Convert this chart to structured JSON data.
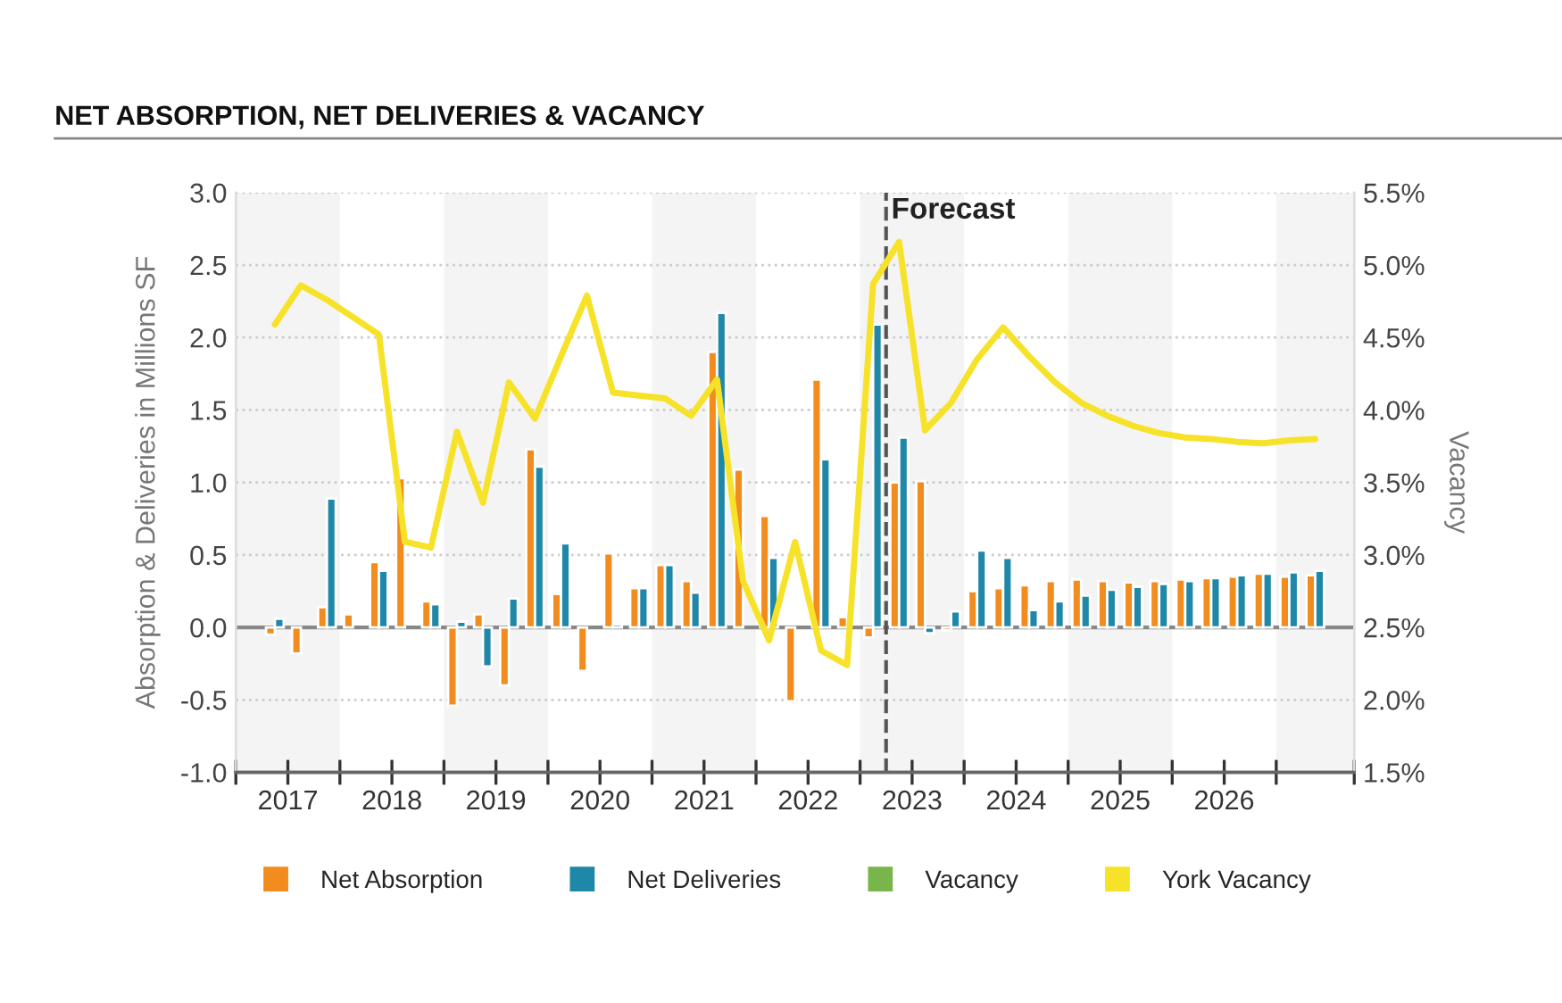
{
  "chart_data": {
    "type": "bar",
    "title": "NET ABSORPTION, NET DELIVERIES & VACANCY",
    "ylabel": "Absorption & Deliveries in Millions SF",
    "y2label": "Vacancy",
    "x": [
      2017.375,
      2017.625,
      2017.875,
      2018.125,
      2018.375,
      2018.625,
      2018.875,
      2019.125,
      2019.375,
      2019.625,
      2019.875,
      2020.125,
      2020.375,
      2020.625,
      2020.875,
      2021.125,
      2021.375,
      2021.625,
      2021.875,
      2022.125,
      2022.375,
      2022.625,
      2022.875,
      2023.125,
      2023.375,
      2023.625,
      2023.875,
      2024.125,
      2024.375,
      2024.625,
      2024.875,
      2025.125,
      2025.375,
      2025.625,
      2025.875,
      2026.125,
      2026.375,
      2026.625,
      2026.875,
      2027.125,
      2027.375
    ],
    "series": [
      {
        "name": "Net Absorption",
        "color": "#f28c1e",
        "values": [
          -0.05,
          -0.18,
          0.14,
          0.09,
          0.45,
          1.03,
          0.18,
          -0.54,
          0.09,
          -0.4,
          1.23,
          0.23,
          -0.3,
          0.51,
          0.27,
          0.43,
          0.32,
          1.9,
          1.09,
          0.77,
          -0.51,
          1.71,
          0.07,
          -0.07,
          1.0,
          1.01,
          -0.02,
          0.25,
          0.27,
          0.29,
          0.32,
          0.33,
          0.32,
          0.31,
          0.32,
          0.33,
          0.34,
          0.35,
          0.37,
          0.35,
          0.36
        ]
      },
      {
        "name": "Net Deliveries",
        "color": "#1f87a8",
        "values": [
          0.06,
          null,
          0.89,
          null,
          0.39,
          null,
          0.16,
          0.04,
          -0.27,
          0.2,
          1.11,
          0.58,
          null,
          0.02,
          0.27,
          0.43,
          0.24,
          2.17,
          null,
          0.48,
          null,
          1.16,
          null,
          2.09,
          1.31,
          -0.04,
          0.11,
          0.53,
          0.48,
          0.12,
          0.18,
          0.22,
          0.26,
          0.28,
          0.3,
          0.32,
          0.34,
          0.36,
          0.37,
          0.38,
          0.39
        ]
      },
      {
        "name": "Vacancy",
        "type": "line",
        "axis": "y2",
        "color": "#78b54a",
        "values": [
          null,
          null,
          null,
          null,
          null,
          null,
          null,
          null,
          null,
          null,
          null,
          null,
          null,
          null,
          null,
          null,
          null,
          null,
          null,
          null,
          null,
          null,
          null,
          null,
          null,
          null,
          null,
          null,
          null,
          null,
          null,
          null,
          null,
          null,
          null,
          null,
          null,
          null,
          null,
          null,
          null
        ]
      },
      {
        "name": "York Vacancy",
        "type": "line",
        "axis": "y2",
        "color": "#f7e22a",
        "values": [
          4.59,
          4.86,
          4.76,
          4.64,
          4.52,
          3.09,
          3.05,
          3.85,
          3.36,
          4.19,
          3.94,
          4.37,
          4.79,
          4.12,
          4.1,
          4.08,
          3.96,
          4.21,
          2.82,
          2.41,
          3.09,
          2.34,
          2.24,
          4.87,
          5.16,
          3.86,
          4.05,
          4.35,
          4.57,
          4.37,
          4.19,
          4.05,
          3.96,
          3.89,
          3.84,
          3.81,
          3.8,
          3.78,
          3.77,
          3.79,
          3.8
        ]
      }
    ],
    "xlim": [
      2017,
      2027.75
    ],
    "xticks": [
      {
        "value": 2017,
        "label": null
      },
      {
        "value": 2017.5,
        "label": "2017"
      },
      {
        "value": 2018,
        "label": null
      },
      {
        "value": 2018.5,
        "label": "2018"
      },
      {
        "value": 2019,
        "label": null
      },
      {
        "value": 2019.5,
        "label": "2019"
      },
      {
        "value": 2020,
        "label": null
      },
      {
        "value": 2020.5,
        "label": "2020"
      },
      {
        "value": 2021,
        "label": null
      },
      {
        "value": 2021.5,
        "label": "2021"
      },
      {
        "value": 2022,
        "label": null
      },
      {
        "value": 2022.5,
        "label": "2022"
      },
      {
        "value": 2023,
        "label": null
      },
      {
        "value": 2023.5,
        "label": "2023"
      },
      {
        "value": 2024,
        "label": null
      },
      {
        "value": 2024.5,
        "label": "2024"
      },
      {
        "value": 2025,
        "label": null
      },
      {
        "value": 2025.5,
        "label": "2025"
      },
      {
        "value": 2026,
        "label": null
      },
      {
        "value": 2026.5,
        "label": "2026"
      },
      {
        "value": 2027,
        "label": null
      },
      {
        "value": 2027.75,
        "label": null
      }
    ],
    "ylim": [
      -1.0,
      3.0
    ],
    "yticks": [
      {
        "value": -1,
        "label": "-1.0"
      },
      {
        "value": -0.5,
        "label": "-0.5"
      },
      {
        "value": 0,
        "label": "0.0"
      },
      {
        "value": 0.5,
        "label": "0.5"
      },
      {
        "value": 1,
        "label": "1.0"
      },
      {
        "value": 1.5,
        "label": "1.5"
      },
      {
        "value": 2,
        "label": "2.0"
      },
      {
        "value": 2.5,
        "label": "2.5"
      },
      {
        "value": 3,
        "label": "3.0"
      }
    ],
    "y2lim": [
      1.5,
      5.5
    ],
    "y2ticks": [
      {
        "value": 1.5,
        "label": "1.5%"
      },
      {
        "value": 2,
        "label": "2.0%"
      },
      {
        "value": 2.5,
        "label": "2.5%"
      },
      {
        "value": 3,
        "label": "3.0%"
      },
      {
        "value": 3.5,
        "label": "3.5%"
      },
      {
        "value": 4,
        "label": "4.0%"
      },
      {
        "value": 4.5,
        "label": "4.5%"
      },
      {
        "value": 5,
        "label": "5.0%"
      },
      {
        "value": 5.5,
        "label": "5.5%"
      }
    ],
    "ref_lines": [
      {
        "axis": "x",
        "value": 2023.25,
        "label": "Forecast",
        "color": "#555555",
        "line_style": "dashed"
      }
    ],
    "bands": [
      {
        "axis": "x",
        "from": 2017,
        "to": 2018,
        "color": "#f4f4f4"
      },
      {
        "axis": "x",
        "from": 2019,
        "to": 2020,
        "color": "#f4f4f4"
      },
      {
        "axis": "x",
        "from": 2021,
        "to": 2022,
        "color": "#f4f4f4"
      },
      {
        "axis": "x",
        "from": 2023,
        "to": 2024,
        "color": "#f4f4f4"
      },
      {
        "axis": "x",
        "from": 2025,
        "to": 2026,
        "color": "#f4f4f4"
      },
      {
        "axis": "x",
        "from": 2027,
        "to": 2027.75,
        "color": "#f4f4f4"
      }
    ],
    "grid": "y",
    "legend": "bottom"
  }
}
